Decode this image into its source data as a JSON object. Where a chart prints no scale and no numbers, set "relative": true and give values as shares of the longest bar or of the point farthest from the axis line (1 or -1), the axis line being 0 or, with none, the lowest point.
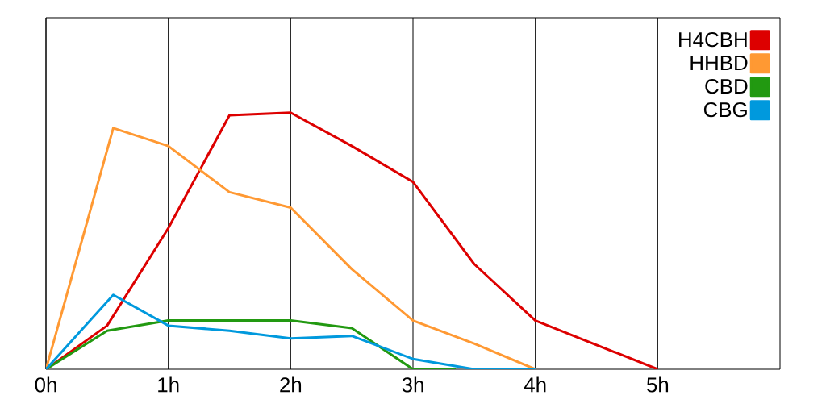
{
  "chart_data": {
    "type": "line",
    "relative": true,
    "grid": "x",
    "legend": "top right",
    "marker": "none",
    "line_style": "solid",
    "xlim": [
      0,
      6
    ],
    "xticks": [
      {
        "value": 0,
        "label": "0h"
      },
      {
        "value": 1,
        "label": "1h"
      },
      {
        "value": 2,
        "label": "2h"
      },
      {
        "value": 3,
        "label": "3h"
      },
      {
        "value": 4,
        "label": "4h"
      },
      {
        "value": 5,
        "label": "5h"
      }
    ],
    "series": [
      {
        "name": "H4CBH",
        "color": "#dd0000",
        "x": [
          0,
          0.5,
          1,
          1.5,
          2,
          2.5,
          3,
          3.5,
          4,
          5
        ],
        "values": [
          0,
          0.17,
          0.55,
          0.99,
          1,
          0.87,
          0.73,
          0.41,
          0.19,
          0
        ]
      },
      {
        "name": "HHBD",
        "color": "#ff9933",
        "x": [
          0,
          0.55,
          1,
          1.5,
          2,
          2.5,
          3,
          3.5,
          4
        ],
        "values": [
          0,
          0.94,
          0.87,
          0.69,
          0.63,
          0.39,
          0.19,
          0.1,
          0
        ]
      },
      {
        "name": "CBD",
        "color": "#229911",
        "x": [
          0,
          0.5,
          1,
          2,
          2.5,
          3,
          3.35
        ],
        "values": [
          0,
          0.15,
          0.19,
          0.19,
          0.16,
          0,
          0
        ]
      },
      {
        "name": "CBG",
        "color": "#0099dd",
        "x": [
          0,
          0.55,
          1,
          1.5,
          2,
          2.5,
          3,
          3.5,
          4
        ],
        "values": [
          0,
          0.29,
          0.17,
          0.15,
          0.12,
          0.13,
          0.04,
          0,
          0
        ]
      }
    ]
  }
}
